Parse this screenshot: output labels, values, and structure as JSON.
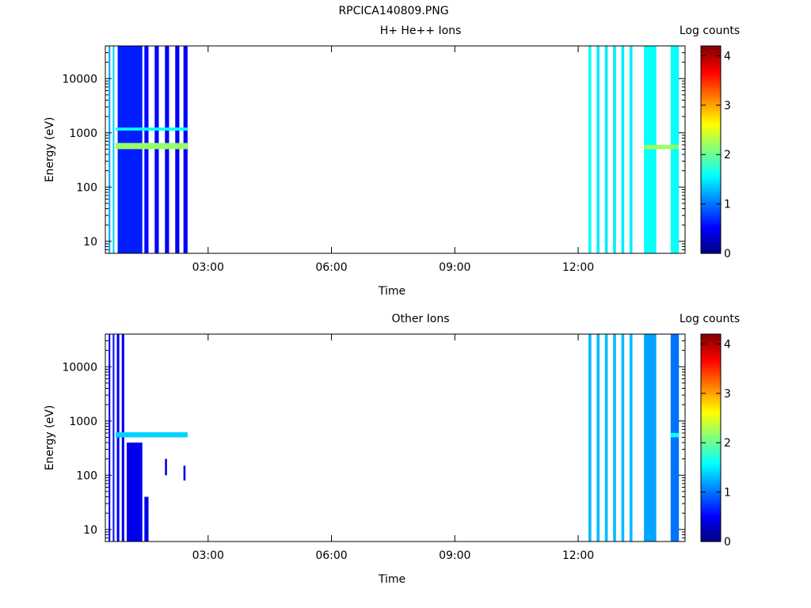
{
  "figure_title": "RPCICA140809.PNG",
  "chart_data": [
    {
      "type": "heatmap",
      "title": "H+ He++ Ions",
      "xlabel": "Time",
      "ylabel": "Energy (eV)",
      "x_tick_labels": [
        "03:00",
        "06:00",
        "09:00",
        "12:00"
      ],
      "x_ticks_hours": [
        3,
        6,
        9,
        12
      ],
      "xlim_hours": [
        0.5,
        14.6
      ],
      "y_scale": "log",
      "ylim": [
        6,
        40000
      ],
      "y_tick_labels": [
        "10",
        "100",
        "1000",
        "10000"
      ],
      "y_ticks": [
        10,
        100,
        1000,
        10000
      ],
      "colorbar": {
        "label": "Log counts",
        "range": [
          0,
          4.2
        ],
        "tick_labels": [
          "0",
          "1",
          "2",
          "3",
          "4"
        ],
        "ticks": [
          0,
          1,
          2,
          3,
          4
        ]
      },
      "data_periods_hours": [
        [
          0.58,
          2.5
        ],
        [
          12.25,
          14.5
        ]
      ],
      "bands": [
        {
          "t0": 0.58,
          "t1": 0.62,
          "e0": 6,
          "e1": 40000,
          "v": 1.2
        },
        {
          "t0": 0.68,
          "t1": 0.72,
          "e0": 6,
          "e1": 40000,
          "v": 1.4
        },
        {
          "t0": 0.8,
          "t1": 1.4,
          "e0": 6,
          "e1": 40000,
          "v": 0.65
        },
        {
          "t0": 1.45,
          "t1": 1.55,
          "e0": 6,
          "e1": 40000,
          "v": 0.55
        },
        {
          "t0": 1.7,
          "t1": 1.8,
          "e0": 6,
          "e1": 40000,
          "v": 0.55
        },
        {
          "t0": 1.95,
          "t1": 2.05,
          "e0": 6,
          "e1": 40000,
          "v": 0.5
        },
        {
          "t0": 2.2,
          "t1": 2.3,
          "e0": 6,
          "e1": 40000,
          "v": 0.5
        },
        {
          "t0": 2.4,
          "t1": 2.5,
          "e0": 6,
          "e1": 40000,
          "v": 0.5
        },
        {
          "t0": 0.75,
          "t1": 2.5,
          "e0": 500,
          "e1": 650,
          "v": 2.2
        },
        {
          "t0": 0.75,
          "t1": 2.5,
          "e0": 1100,
          "e1": 1250,
          "v": 1.6
        },
        {
          "t0": 12.25,
          "t1": 12.32,
          "e0": 6,
          "e1": 40000,
          "v": 1.6
        },
        {
          "t0": 12.45,
          "t1": 12.52,
          "e0": 6,
          "e1": 40000,
          "v": 1.5
        },
        {
          "t0": 12.65,
          "t1": 12.72,
          "e0": 6,
          "e1": 40000,
          "v": 1.5
        },
        {
          "t0": 12.85,
          "t1": 12.92,
          "e0": 6,
          "e1": 40000,
          "v": 1.5
        },
        {
          "t0": 13.05,
          "t1": 13.12,
          "e0": 6,
          "e1": 40000,
          "v": 1.5
        },
        {
          "t0": 13.25,
          "t1": 13.32,
          "e0": 6,
          "e1": 40000,
          "v": 1.5
        },
        {
          "t0": 13.6,
          "t1": 13.9,
          "e0": 6,
          "e1": 40000,
          "v": 1.6
        },
        {
          "t0": 14.25,
          "t1": 14.45,
          "e0": 6,
          "e1": 40000,
          "v": 1.6
        },
        {
          "t0": 13.6,
          "t1": 14.45,
          "e0": 500,
          "e1": 600,
          "v": 2.2
        }
      ]
    },
    {
      "type": "heatmap",
      "title": "Other Ions",
      "xlabel": "Time",
      "ylabel": "Energy (eV)",
      "x_tick_labels": [
        "03:00",
        "06:00",
        "09:00",
        "12:00"
      ],
      "x_ticks_hours": [
        3,
        6,
        9,
        12
      ],
      "xlim_hours": [
        0.5,
        14.6
      ],
      "y_scale": "log",
      "ylim": [
        6,
        40000
      ],
      "y_tick_labels": [
        "10",
        "100",
        "1000",
        "10000"
      ],
      "y_ticks": [
        10,
        100,
        1000,
        10000
      ],
      "colorbar": {
        "label": "Log counts",
        "range": [
          0,
          4.2
        ],
        "tick_labels": [
          "0",
          "1",
          "2",
          "3",
          "4"
        ],
        "ticks": [
          0,
          1,
          2,
          3,
          4
        ]
      },
      "data_periods_hours": [
        [
          0.58,
          2.5
        ],
        [
          12.25,
          14.5
        ]
      ],
      "bands": [
        {
          "t0": 0.58,
          "t1": 0.62,
          "e0": 6,
          "e1": 40000,
          "v": 0.5
        },
        {
          "t0": 0.68,
          "t1": 0.72,
          "e0": 6,
          "e1": 40000,
          "v": 0.6
        },
        {
          "t0": 0.78,
          "t1": 0.84,
          "e0": 6,
          "e1": 40000,
          "v": 0.5
        },
        {
          "t0": 0.9,
          "t1": 0.96,
          "e0": 6,
          "e1": 40000,
          "v": 0.45
        },
        {
          "t0": 1.02,
          "t1": 1.4,
          "e0": 6,
          "e1": 400,
          "v": 0.45
        },
        {
          "t0": 1.45,
          "t1": 1.55,
          "e0": 6,
          "e1": 40,
          "v": 0.4
        },
        {
          "t0": 1.95,
          "t1": 2.0,
          "e0": 100,
          "e1": 200,
          "v": 0.4
        },
        {
          "t0": 2.4,
          "t1": 2.45,
          "e0": 80,
          "e1": 150,
          "v": 0.4
        },
        {
          "t0": 0.75,
          "t1": 2.5,
          "e0": 500,
          "e1": 620,
          "v": 1.4
        },
        {
          "t0": 12.25,
          "t1": 12.32,
          "e0": 6,
          "e1": 40000,
          "v": 1.3
        },
        {
          "t0": 12.45,
          "t1": 12.52,
          "e0": 6,
          "e1": 40000,
          "v": 1.3
        },
        {
          "t0": 12.65,
          "t1": 12.72,
          "e0": 6,
          "e1": 40000,
          "v": 1.3
        },
        {
          "t0": 12.85,
          "t1": 12.92,
          "e0": 6,
          "e1": 40000,
          "v": 1.3
        },
        {
          "t0": 13.05,
          "t1": 13.12,
          "e0": 6,
          "e1": 40000,
          "v": 1.3
        },
        {
          "t0": 13.25,
          "t1": 13.32,
          "e0": 6,
          "e1": 40000,
          "v": 1.3
        },
        {
          "t0": 13.6,
          "t1": 13.9,
          "e0": 6,
          "e1": 40000,
          "v": 1.2
        },
        {
          "t0": 14.25,
          "t1": 14.45,
          "e0": 6,
          "e1": 40000,
          "v": 1.0
        },
        {
          "t0": 14.25,
          "t1": 14.45,
          "e0": 500,
          "e1": 600,
          "v": 1.6
        }
      ]
    }
  ]
}
